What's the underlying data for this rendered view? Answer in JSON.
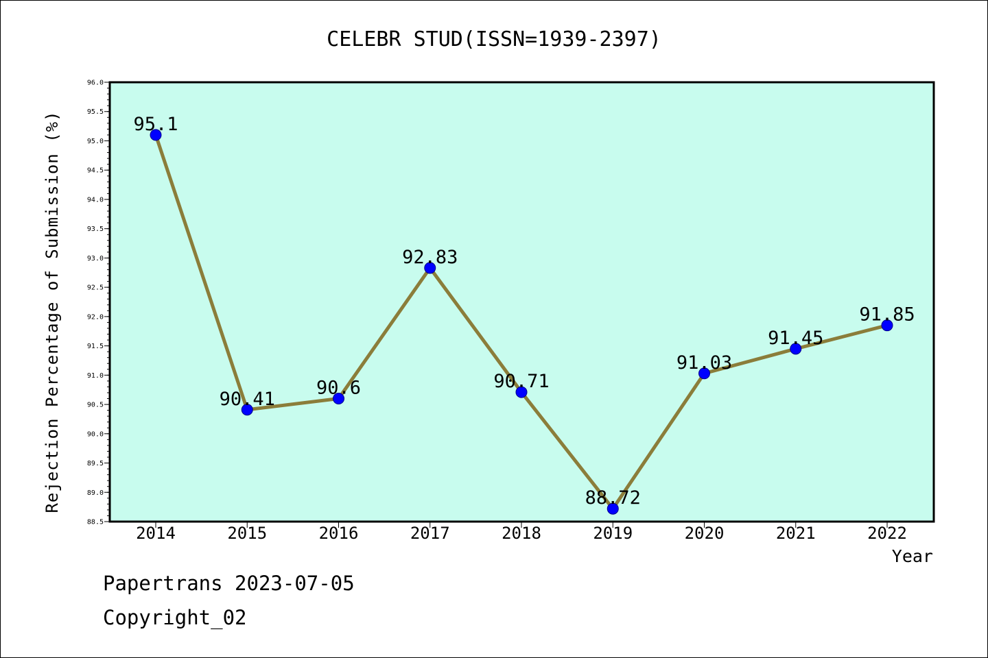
{
  "chart_data": {
    "type": "line",
    "title": "CELEBR STUD(ISSN=1939-2397)",
    "xlabel": "Year",
    "ylabel": "Rejection Percentage of Submission (%)",
    "categories": [
      "2014",
      "2015",
      "2016",
      "2017",
      "2018",
      "2019",
      "2020",
      "2021",
      "2022"
    ],
    "series": [
      {
        "values": [
          95.1,
          90.41,
          90.6,
          92.83,
          90.71,
          88.72,
          91.03,
          91.45,
          91.85
        ],
        "data_labels": [
          "95.1",
          "90.41",
          "90.6",
          "92.83",
          "90.71",
          "88.72",
          "91.03",
          "91.45",
          "91.85"
        ]
      }
    ],
    "ylim": [
      88.5,
      96.0
    ],
    "yticks": [
      "88.5",
      "89.0",
      "89.5",
      "90.0",
      "90.5",
      "91.0",
      "91.5",
      "92.0",
      "92.5",
      "93.0",
      "93.5",
      "94.0",
      "94.5",
      "95.0",
      "95.5",
      "96.0"
    ],
    "grid": false,
    "legend": "none",
    "colors": {
      "plot_background": "#c8fcee",
      "line": "#8b7d3a",
      "marker": "#0000ff"
    }
  },
  "footer": {
    "line1": "Papertrans 2023-07-05",
    "line2": "Copyright_02"
  }
}
